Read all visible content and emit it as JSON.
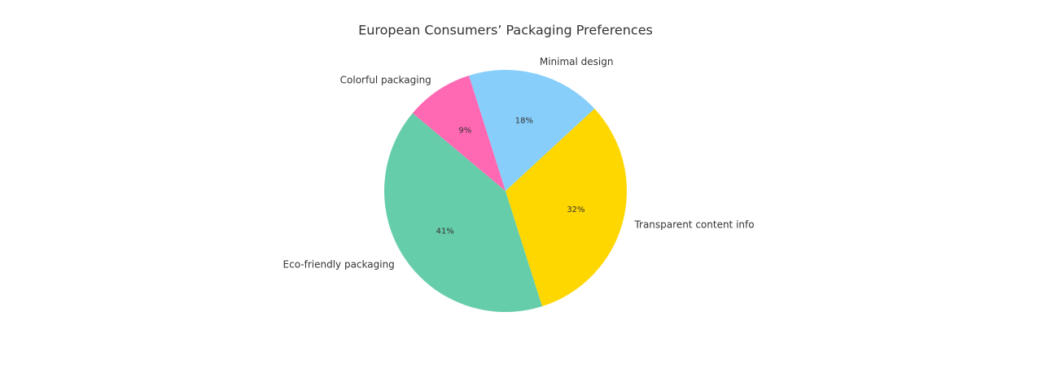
{
  "chart_data": {
    "type": "pie",
    "title": "European Consumers’ Packaging Preferences",
    "categories": [
      "Eco-friendly packaging",
      "Transparent content info",
      "Minimal design",
      "Colorful packaging"
    ],
    "values": [
      41,
      32,
      18,
      9
    ],
    "value_labels": [
      "41%",
      "32%",
      "18%",
      "9%"
    ],
    "colors": [
      "#66cdaa",
      "#ffd700",
      "#87cefa",
      "#ff69b4"
    ]
  }
}
